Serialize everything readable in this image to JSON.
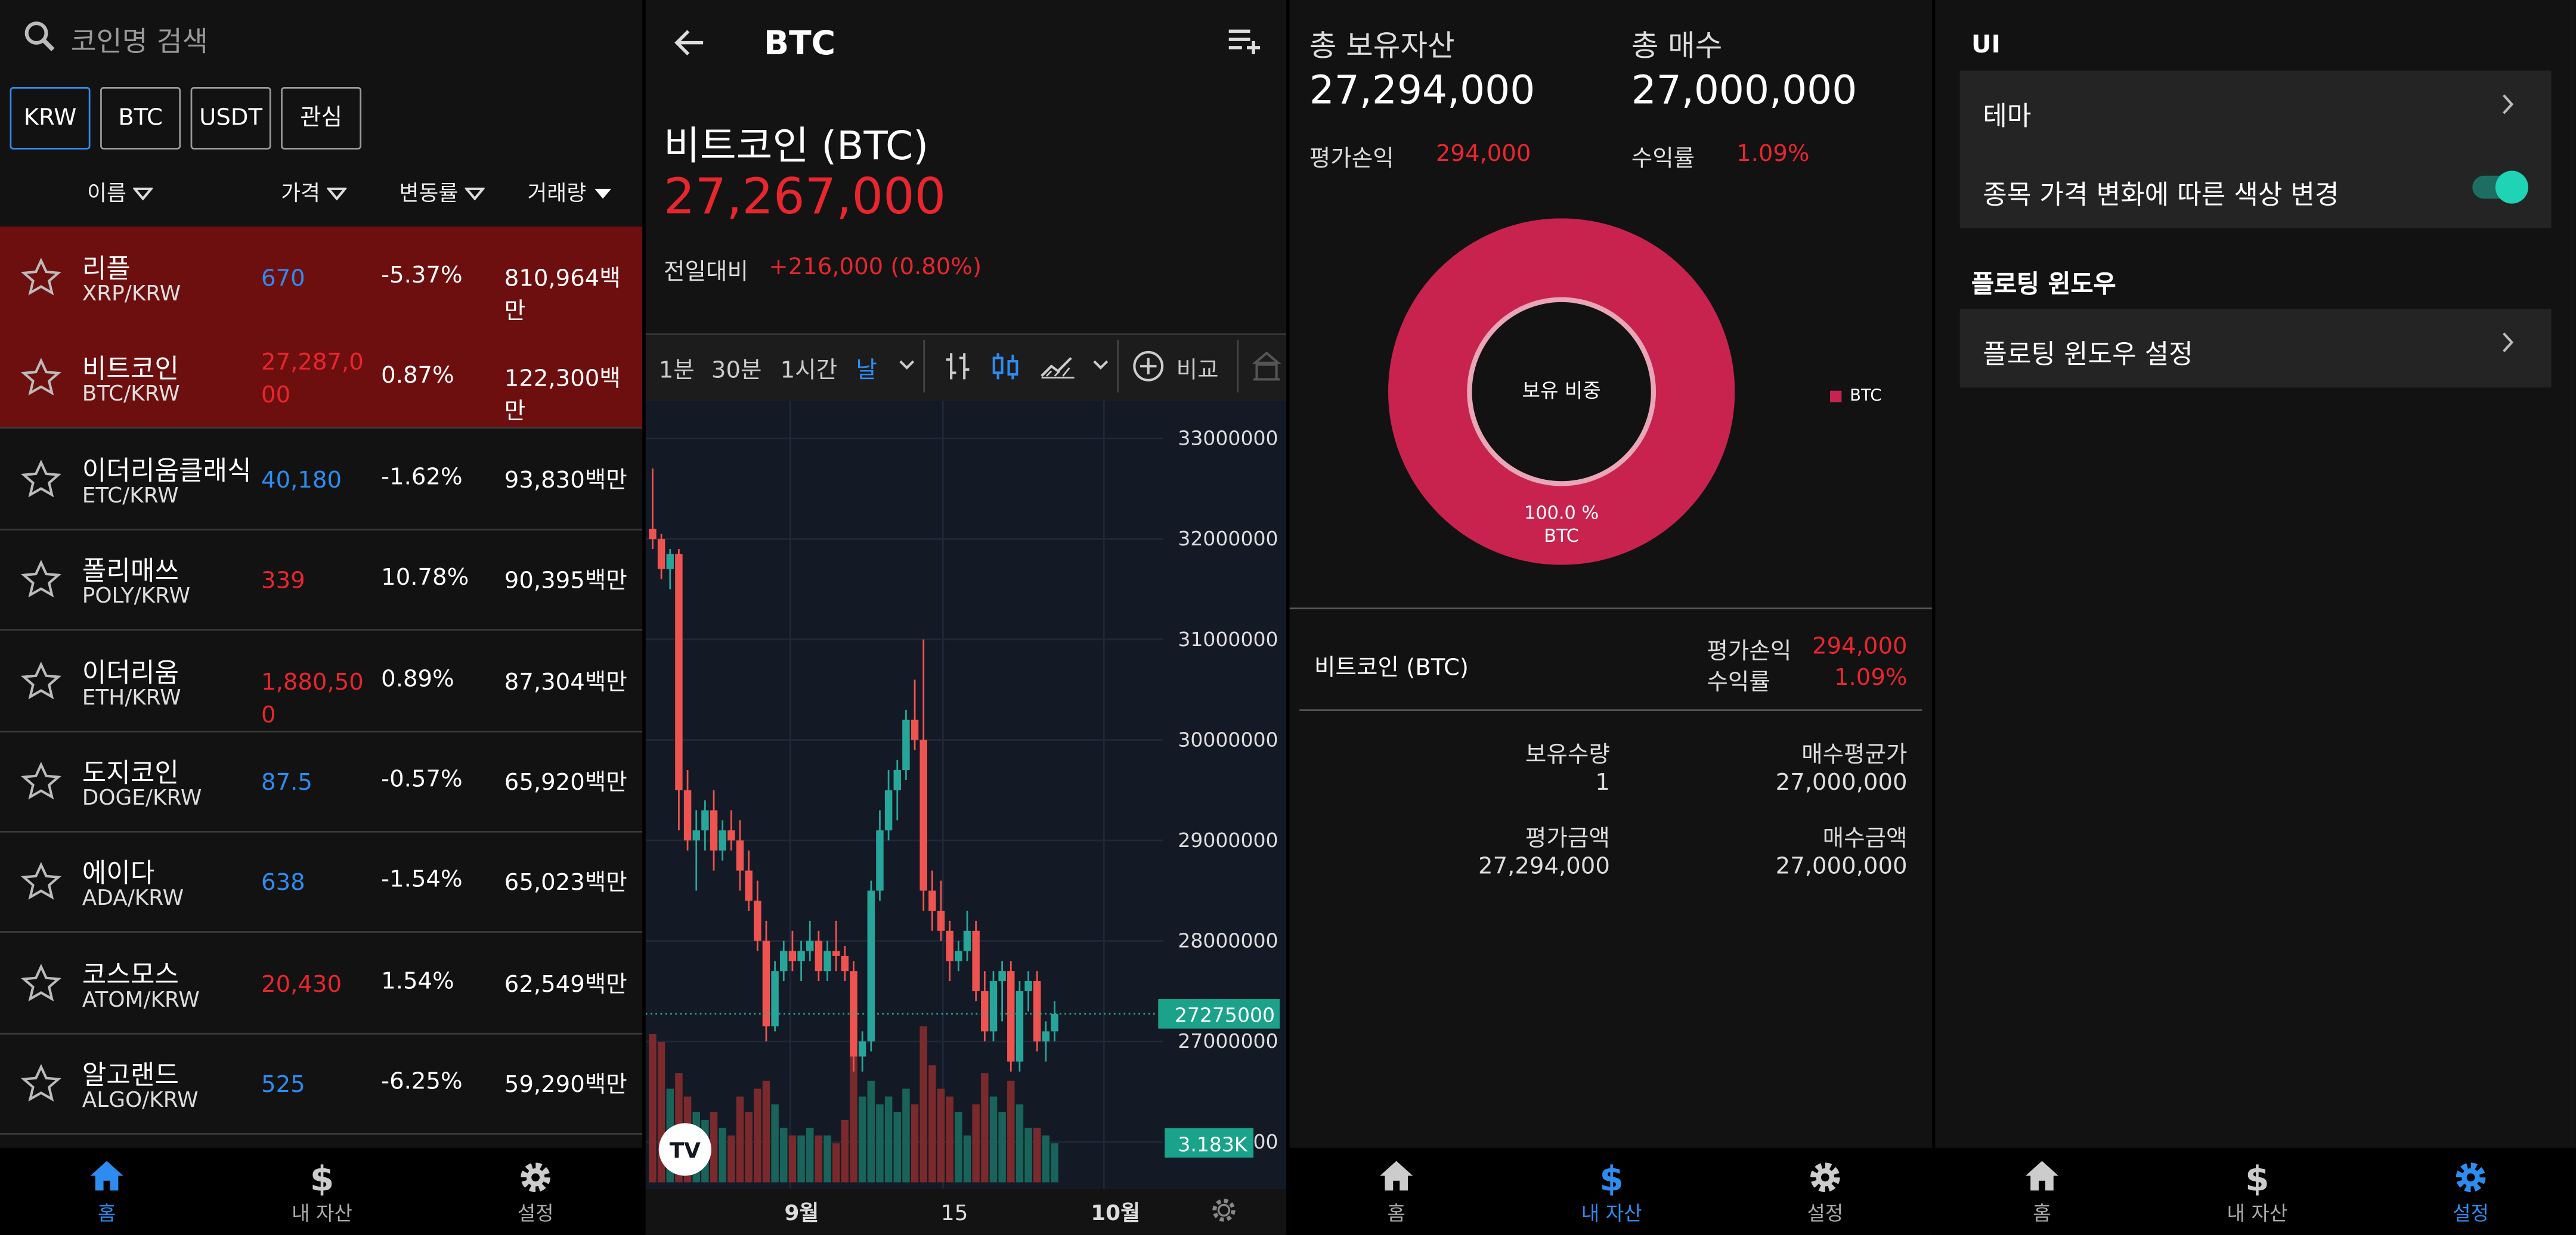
{
  "colors": {
    "up": "#e8262e",
    "down": "#2d8cf0",
    "accent": "#2d8cf0",
    "teal": "#1aa38a",
    "donut": "#c8234f",
    "toggle": "#1ed4b4"
  },
  "market": {
    "search_placeholder": "코인명 검색",
    "tabs": [
      {
        "label": "KRW"
      },
      {
        "label": "BTC"
      },
      {
        "label": "USDT"
      },
      {
        "label": "관심"
      }
    ],
    "columns": {
      "name": "이름",
      "price": "가격",
      "change": "변동률",
      "volume": "거래량"
    },
    "rows": [
      {
        "name": "리플",
        "market": "XRP/KRW",
        "price": "670",
        "change": "-5.37%",
        "volume": "810,964백만",
        "dir": "down",
        "highlight": true
      },
      {
        "name": "비트코인",
        "market": "BTC/KRW",
        "price": "27,287,000",
        "change": "0.87%",
        "volume": "122,300백만",
        "dir": "up",
        "highlight": true
      },
      {
        "name": "이더리움클래식",
        "market": "ETC/KRW",
        "price": "40,180",
        "change": "-1.62%",
        "volume": "93,830백만",
        "dir": "down",
        "highlight": false
      },
      {
        "name": "폴리매쓰",
        "market": "POLY/KRW",
        "price": "339",
        "change": "10.78%",
        "volume": "90,395백만",
        "dir": "up",
        "highlight": false
      },
      {
        "name": "이더리움",
        "market": "ETH/KRW",
        "price": "1,880,500",
        "change": "0.89%",
        "volume": "87,304백만",
        "dir": "up",
        "highlight": false
      },
      {
        "name": "도지코인",
        "market": "DOGE/KRW",
        "price": "87.5",
        "change": "-0.57%",
        "volume": "65,920백만",
        "dir": "down",
        "highlight": false
      },
      {
        "name": "에이다",
        "market": "ADA/KRW",
        "price": "638",
        "change": "-1.54%",
        "volume": "65,023백만",
        "dir": "down",
        "highlight": false
      },
      {
        "name": "코스모스",
        "market": "ATOM/KRW",
        "price": "20,430",
        "change": "1.54%",
        "volume": "62,549백만",
        "dir": "up",
        "highlight": false
      },
      {
        "name": "알고랜드",
        "market": "ALGO/KRW",
        "price": "525",
        "change": "-6.25%",
        "volume": "59,290백만",
        "dir": "down",
        "highlight": false
      }
    ]
  },
  "nav": {
    "home": "홈",
    "assets": "내 자산",
    "settings": "설정"
  },
  "detail": {
    "title": "BTC",
    "coin_name": "비트코인 (BTC)",
    "price": "27,267,000",
    "prev_label": "전일대비",
    "prev_value": "+216,000 (0.80%)",
    "intervals": [
      "1분",
      "30분",
      "1시간",
      "날"
    ],
    "compare_label": "비교",
    "price_axis": [
      "33000000",
      "32000000",
      "31000000",
      "30000000",
      "29000000",
      "28000000",
      "27000000",
      "26000000"
    ],
    "last_price_tag": "27275000",
    "volume_tag": "3.183K",
    "date_labels": [
      "9월",
      "15",
      "10월"
    ],
    "logo_text": "TV"
  },
  "chart_data": {
    "type": "candlestick",
    "ylim": [
      26000000,
      33500000
    ],
    "last_price": 27275000,
    "candles": [
      [
        32100000,
        32700000,
        31900000,
        32000000
      ],
      [
        32000000,
        32050000,
        31600000,
        31700000
      ],
      [
        31700000,
        31900000,
        31500000,
        31850000
      ],
      [
        31850000,
        31900000,
        29100000,
        29500000
      ],
      [
        29500000,
        29700000,
        28900000,
        29000000
      ],
      [
        29000000,
        29300000,
        28500000,
        29100000
      ],
      [
        29100000,
        29400000,
        28900000,
        29300000
      ],
      [
        29300000,
        29500000,
        28700000,
        28900000
      ],
      [
        28900000,
        29200000,
        28800000,
        29100000
      ],
      [
        29100000,
        29300000,
        28900000,
        29000000
      ],
      [
        29000000,
        29200000,
        28500000,
        28700000
      ],
      [
        28700000,
        28900000,
        28300000,
        28400000
      ],
      [
        28400000,
        28600000,
        27900000,
        28000000
      ],
      [
        28000000,
        28200000,
        27000000,
        27150000
      ],
      [
        27150000,
        27800000,
        27100000,
        27700000
      ],
      [
        27700000,
        28000000,
        27600000,
        27900000
      ],
      [
        27900000,
        28100000,
        27700000,
        27800000
      ],
      [
        27800000,
        28000000,
        27600000,
        27900000
      ],
      [
        27900000,
        28200000,
        27800000,
        28000000
      ],
      [
        28000000,
        28100000,
        27600000,
        27700000
      ],
      [
        27700000,
        28000000,
        27600000,
        27900000
      ],
      [
        27900000,
        28200000,
        27700000,
        27850000
      ],
      [
        27850000,
        27950000,
        27600000,
        27700000
      ],
      [
        27700000,
        27800000,
        26700000,
        26850000
      ],
      [
        26850000,
        27100000,
        26700000,
        27000000
      ],
      [
        27000000,
        28600000,
        26900000,
        28500000
      ],
      [
        28500000,
        29300000,
        28400000,
        29100000
      ],
      [
        29100000,
        29700000,
        29000000,
        29500000
      ],
      [
        29500000,
        29800000,
        29200000,
        29700000
      ],
      [
        29700000,
        30300000,
        29600000,
        30200000
      ],
      [
        30200000,
        30600000,
        29900000,
        30000000
      ],
      [
        30000000,
        31000000,
        28300000,
        28500000
      ],
      [
        28500000,
        28700000,
        28100000,
        28300000
      ],
      [
        28300000,
        28600000,
        28000000,
        28100000
      ],
      [
        28100000,
        28200000,
        27600000,
        27800000
      ],
      [
        27800000,
        28000000,
        27700000,
        27900000
      ],
      [
        27900000,
        28300000,
        27800000,
        28100000
      ],
      [
        28100000,
        28200000,
        27400000,
        27500000
      ],
      [
        27500000,
        27700000,
        27000000,
        27100000
      ],
      [
        27100000,
        27700000,
        27000000,
        27600000
      ],
      [
        27600000,
        27800000,
        27200000,
        27700000
      ],
      [
        27700000,
        27800000,
        26700000,
        26800000
      ],
      [
        26800000,
        27600000,
        26700000,
        27500000
      ],
      [
        27500000,
        27700000,
        27300000,
        27600000
      ],
      [
        27600000,
        27700000,
        26900000,
        27000000
      ],
      [
        27000000,
        27200000,
        26800000,
        27100000
      ],
      [
        27100000,
        27400000,
        27000000,
        27275000
      ]
    ],
    "volumes": [
      0.95,
      0.9,
      0.6,
      0.7,
      0.55,
      0.45,
      0.4,
      0.45,
      0.35,
      0.3,
      0.55,
      0.45,
      0.6,
      0.65,
      0.5,
      0.35,
      0.3,
      0.3,
      0.35,
      0.3,
      0.3,
      0.25,
      0.4,
      0.85,
      0.55,
      0.65,
      0.5,
      0.55,
      0.45,
      0.6,
      0.5,
      1.0,
      0.75,
      0.6,
      0.55,
      0.45,
      0.3,
      0.5,
      0.7,
      0.55,
      0.45,
      0.65,
      0.5,
      0.35,
      0.35,
      0.3,
      0.25
    ]
  },
  "assets": {
    "total_label": "총 보유자산",
    "total_value": "27,294,000",
    "buy_label": "총 매수",
    "buy_value": "27,000,000",
    "pl_label": "평가손익",
    "pl_value": "294,000",
    "rate_label": "수익률",
    "rate_value": "1.09%",
    "donut_center": "보유 비중",
    "donut_pct": "100.0 %",
    "donut_coin": "BTC",
    "legend": "BTC",
    "holding": {
      "name": "비트코인 (BTC)",
      "pl_label": "평가손익",
      "pl_value": "294,000",
      "rate_label": "수익률",
      "rate_value": "1.09%",
      "qty_label": "보유수량",
      "qty_value": "1",
      "avg_label": "매수평균가",
      "avg_value": "27,000,000",
      "eval_label": "평가금액",
      "eval_value": "27,294,000",
      "buyamt_label": "매수금액",
      "buyamt_value": "27,000,000"
    }
  },
  "settings": {
    "section_ui": "UI",
    "theme": "테마",
    "color_change": "종목 가격 변화에 따른 색상 변경",
    "color_change_on": true,
    "section_floating": "플로팅 윈도우",
    "floating_setting": "플로팅 윈도우 설정"
  }
}
